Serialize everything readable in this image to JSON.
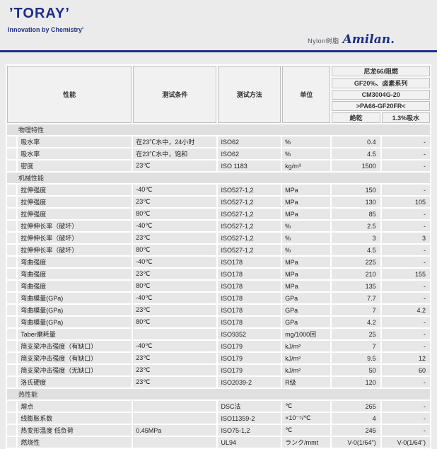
{
  "header": {
    "logo": "’TORAY’",
    "tagline": "Innovation by Chemistryʹ",
    "product_prefix": "Nylon树脂",
    "product_logo": "Amilan.",
    "accent_color": "#1d2e87"
  },
  "table": {
    "columns": {
      "property": "性能",
      "condition": "测试条件",
      "method": "测试方法",
      "unit": "单位"
    },
    "product": {
      "lines": [
        "尼龙66/阻燃",
        "GF20%、卤素系列",
        "CM3004G-20",
        ">PA66-GF20FR<"
      ],
      "sub_columns": [
        "絶乾",
        "1.3%吸水"
      ]
    },
    "sections": [
      {
        "title": "物理特性",
        "rows": [
          {
            "property": "吸水率",
            "condition": "在23℃水中，24小时",
            "method": "ISO62",
            "unit": "%",
            "dry": "0.4",
            "wet": "-"
          },
          {
            "property": "吸水率",
            "condition": "在23℃水中，饱和",
            "method": "ISO62",
            "unit": "%",
            "dry": "4.5",
            "wet": "-"
          },
          {
            "property": "密度",
            "condition": "23℃",
            "method": "ISO 1183",
            "unit": "kg/m³",
            "dry": "1500",
            "wet": "-"
          }
        ]
      },
      {
        "title": "机械性能",
        "rows": [
          {
            "property": "拉伸强度",
            "condition": "-40℃",
            "method": "ISO527-1,2",
            "unit": "MPa",
            "dry": "150",
            "wet": "-"
          },
          {
            "property": "拉伸强度",
            "condition": "23℃",
            "method": "ISO527-1,2",
            "unit": "MPa",
            "dry": "130",
            "wet": "105"
          },
          {
            "property": "拉伸强度",
            "condition": "80℃",
            "method": "ISO527-1,2",
            "unit": "MPa",
            "dry": "85",
            "wet": "-"
          },
          {
            "property": "拉伸伸长率（破坏）",
            "condition": "-40℃",
            "method": "ISO527-1,2",
            "unit": "%",
            "dry": "2.5",
            "wet": "-"
          },
          {
            "property": "拉伸伸长率（破坏）",
            "condition": "23℃",
            "method": "ISO527-1,2",
            "unit": "%",
            "dry": "3",
            "wet": "3"
          },
          {
            "property": "拉伸伸长率（破坏）",
            "condition": "80℃",
            "method": "ISO527-1,2",
            "unit": "%",
            "dry": "4.5",
            "wet": "-"
          },
          {
            "property": "弯曲强度",
            "condition": "-40℃",
            "method": "ISO178",
            "unit": "MPa",
            "dry": "225",
            "wet": "-"
          },
          {
            "property": "弯曲强度",
            "condition": "23℃",
            "method": "ISO178",
            "unit": "MPa",
            "dry": "210",
            "wet": "155"
          },
          {
            "property": "弯曲强度",
            "condition": "80℃",
            "method": "ISO178",
            "unit": "MPa",
            "dry": "135",
            "wet": "-"
          },
          {
            "property": "弯曲模量(GPa)",
            "condition": "-40℃",
            "method": "ISO178",
            "unit": "GPa",
            "dry": "7.7",
            "wet": "-"
          },
          {
            "property": "弯曲模量(GPa)",
            "condition": "23℃",
            "method": "ISO178",
            "unit": "GPa",
            "dry": "7",
            "wet": "4.2"
          },
          {
            "property": "弯曲模量(GPa)",
            "condition": "80℃",
            "method": "ISO178",
            "unit": "GPa",
            "dry": "4.2",
            "wet": "-"
          },
          {
            "property": "Taber磨耗量",
            "condition": "",
            "method": "ISO9352",
            "unit": "mg/1000回",
            "dry": "25",
            "wet": "-"
          },
          {
            "property": "简支梁冲击强度（有缺口）",
            "condition": "-40℃",
            "method": "ISO179",
            "unit": "kJ/m²",
            "dry": "7",
            "wet": "-"
          },
          {
            "property": "简支梁冲击强度（有缺口）",
            "condition": "23℃",
            "method": "ISO179",
            "unit": "kJ/m²",
            "dry": "9.5",
            "wet": "12"
          },
          {
            "property": "简支梁冲击强度（无缺口）",
            "condition": "23℃",
            "method": "ISO179",
            "unit": "kJ/m²",
            "dry": "50",
            "wet": "60"
          },
          {
            "property": "洛氏硬度",
            "condition": "23℃",
            "method": "ISO2039-2",
            "unit": "R级",
            "dry": "120",
            "wet": "-"
          }
        ]
      },
      {
        "title": "热性能",
        "rows": [
          {
            "property": "熔点",
            "condition": "",
            "method": "DSC法",
            "unit": "℃",
            "dry": "265",
            "wet": "-"
          },
          {
            "property": "线膨胀系数",
            "condition": "",
            "method": "ISO11359-2",
            "unit": "×10⁻⁵/℃",
            "dry": "4",
            "wet": "-"
          },
          {
            "property": "热变形温度 低负荷",
            "condition": "0.45MPa",
            "method": "ISO75-1,2",
            "unit": "℃",
            "dry": "245",
            "wet": "-"
          },
          {
            "property": "燃烧性",
            "condition": "",
            "method": "UL94",
            "unit": "ランク/mmt",
            "dry": "V-0(1/64\")",
            "wet": "V-0(1/64\")"
          }
        ]
      }
    ]
  }
}
